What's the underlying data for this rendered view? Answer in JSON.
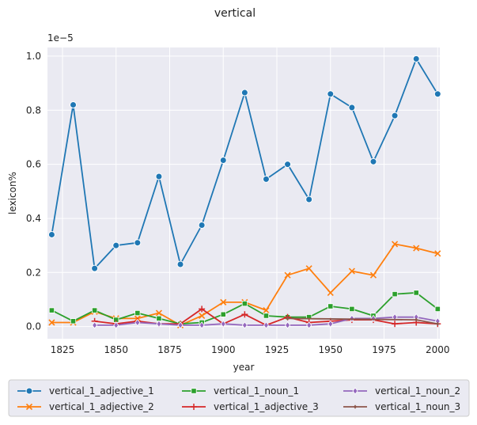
{
  "chart_data": {
    "type": "line",
    "title": "vertical",
    "xlabel": "year",
    "ylabel": "lexicon%",
    "y_multiplier": "1e−5",
    "xlim": [
      1818,
      2001
    ],
    "ylim": [
      -0.045,
      1.032
    ],
    "x_ticks": [
      {
        "v": 1825,
        "label": "1825"
      },
      {
        "v": 1850,
        "label": "1850"
      },
      {
        "v": 1875,
        "label": "1875"
      },
      {
        "v": 1900,
        "label": "1900"
      },
      {
        "v": 1925,
        "label": "1925"
      },
      {
        "v": 1950,
        "label": "1950"
      },
      {
        "v": 1975,
        "label": "1975"
      },
      {
        "v": 2000,
        "label": "2000"
      }
    ],
    "y_ticks": [
      {
        "v": 0.0,
        "label": "0.0"
      },
      {
        "v": 0.2,
        "label": "0.2"
      },
      {
        "v": 0.4,
        "label": "0.4"
      },
      {
        "v": 0.6,
        "label": "0.6"
      },
      {
        "v": 0.8,
        "label": "0.8"
      },
      {
        "v": 1.0,
        "label": "1.0"
      }
    ],
    "grid": true,
    "legend_position": "bottom",
    "x": [
      1820,
      1830,
      1840,
      1850,
      1860,
      1870,
      1880,
      1890,
      1900,
      1910,
      1920,
      1930,
      1940,
      1950,
      1960,
      1970,
      1980,
      1990,
      2000
    ],
    "series": [
      {
        "name": "vertical_1_adjective_1",
        "color": "#1f77b4",
        "marker": "circle",
        "values": [
          0.34,
          0.82,
          0.215,
          0.3,
          0.31,
          0.555,
          0.23,
          0.375,
          0.615,
          0.865,
          0.545,
          0.6,
          0.47,
          0.86,
          0.81,
          0.61,
          0.78,
          0.99,
          0.86
        ]
      },
      {
        "name": "vertical_1_adjective_2",
        "color": "#ff7f0e",
        "marker": "x",
        "values": [
          0.015,
          0.015,
          0.055,
          0.03,
          0.03,
          0.05,
          0.005,
          0.04,
          0.09,
          0.09,
          0.06,
          0.19,
          0.215,
          0.125,
          0.205,
          0.19,
          0.305,
          0.29,
          0.27
        ]
      },
      {
        "name": "vertical_1_noun_1",
        "color": "#2ca02c",
        "marker": "square",
        "values": [
          0.06,
          0.02,
          0.06,
          0.025,
          0.05,
          0.03,
          0.01,
          0.015,
          0.045,
          0.085,
          0.04,
          0.035,
          0.035,
          0.075,
          0.065,
          0.04,
          0.12,
          0.125,
          0.065
        ]
      },
      {
        "name": "vertical_1_adjective_3",
        "color": "#d62728",
        "marker": "plus",
        "values": [
          null,
          null,
          0.02,
          0.01,
          0.02,
          0.01,
          0.01,
          0.065,
          0.01,
          0.045,
          0.005,
          0.035,
          0.015,
          0.02,
          0.025,
          0.025,
          0.01,
          0.015,
          0.01
        ]
      },
      {
        "name": "vertical_1_noun_2",
        "color": "#9467bd",
        "marker": "diamond",
        "values": [
          null,
          null,
          0.005,
          0.005,
          0.015,
          0.01,
          0.005,
          0.005,
          0.01,
          0.005,
          0.005,
          0.005,
          0.005,
          0.01,
          0.03,
          0.03,
          0.035,
          0.035,
          0.02
        ]
      },
      {
        "name": "vertical_1_noun_3",
        "color": "#8c564b",
        "marker": "smalldiamond",
        "values": [
          null,
          null,
          null,
          null,
          null,
          null,
          null,
          null,
          null,
          null,
          null,
          0.03,
          null,
          null,
          null,
          null,
          null,
          0.025,
          0.01
        ]
      }
    ]
  }
}
